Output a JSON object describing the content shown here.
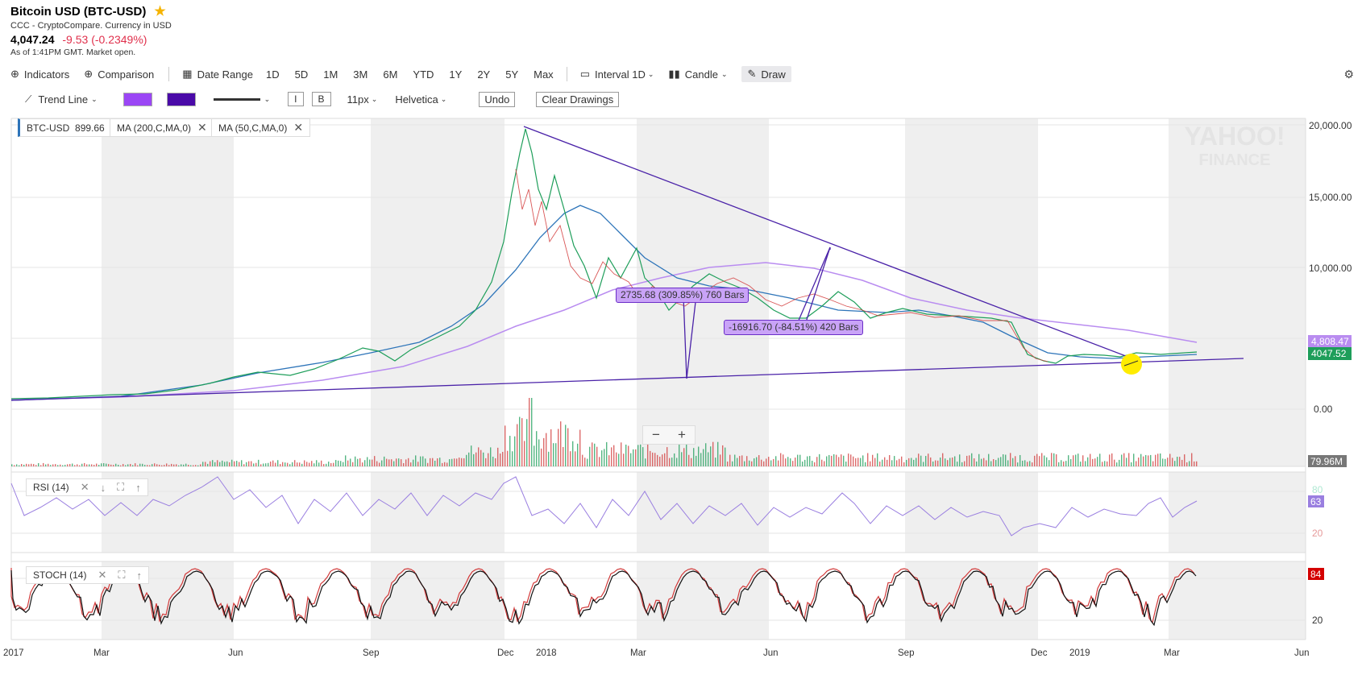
{
  "header": {
    "title": "Bitcoin USD (BTC-USD)",
    "source": "CCC - CryptoCompare. Currency in USD",
    "price": "4,047.24",
    "change": "-9.53 (-0.2349%)",
    "as_of": "As of 1:41PM GMT. Market open."
  },
  "toolbar": {
    "indicators": "Indicators",
    "comparison": "Comparison",
    "date_range": "Date Range",
    "ranges": [
      "1D",
      "5D",
      "1M",
      "3M",
      "6M",
      "YTD",
      "1Y",
      "2Y",
      "5Y",
      "Max"
    ],
    "interval": "Interval",
    "interval_value": "1D",
    "chart_type": "Candle",
    "draw": "Draw"
  },
  "drawbar": {
    "tool": "Trend Line",
    "fill_color": "#9b46f5",
    "line_color": "#4a0aa8",
    "italic": "I",
    "bold": "B",
    "font_size": "11px",
    "font_family": "Helvetica",
    "undo": "Undo",
    "clear": "Clear Drawings"
  },
  "legend": {
    "btc": "BTC-USD",
    "btc_value": "899.66",
    "ma200": "MA (200,C,MA,0)",
    "ma50": "MA (50,C,MA,0)"
  },
  "annotations": {
    "measure1": "2735.68 (309.85%) 760 Bars",
    "measure2": "-16916.70 (-84.51%) 420 Bars"
  },
  "watermark": {
    "line1": "YAHOO!",
    "line2": "FINANCE"
  },
  "zoom": {
    "minus": "−",
    "plus": "+"
  },
  "price_axis": {
    "ticks": [
      "20,000.00",
      "15,000.00",
      "10,000.00",
      "0.00"
    ],
    "ma200_label": "4,808.47",
    "last_label": "4047.52",
    "volume_label": "79.96M"
  },
  "rsi": {
    "label": "RSI (14)",
    "ticks": [
      "80",
      "20"
    ],
    "value": "63"
  },
  "stoch": {
    "label": "STOCH (14)",
    "tick": "20",
    "value": "84"
  },
  "x_axis": [
    "2017",
    "Mar",
    "Jun",
    "Sep",
    "Dec",
    "2018",
    "Mar",
    "Jun",
    "Sep",
    "Dec",
    "2019",
    "Mar",
    "Jun"
  ],
  "colors": {
    "price_up": "#1e9e5a",
    "price_down": "#d23a3a",
    "ma50": "#2d74b9",
    "ma200": "#b98cf0",
    "trendline": "#4a22a8",
    "rsi": "#9a7fe0",
    "highlight": "#ffec00"
  },
  "chart_data": {
    "type": "line",
    "title": "Bitcoin USD (BTC-USD)",
    "x": [
      "2017-01",
      "2017-03",
      "2017-06",
      "2017-09",
      "2017-12",
      "2018-01",
      "2018-03",
      "2018-06",
      "2018-09",
      "2018-12",
      "2019-01",
      "2019-03"
    ],
    "series": [
      {
        "name": "BTC-USD",
        "values": [
          1000,
          1200,
          2700,
          4300,
          19500,
          13500,
          8500,
          6500,
          6600,
          3500,
          3600,
          4047
        ]
      },
      {
        "name": "MA (50,C,MA,0)",
        "values": [
          950,
          1100,
          2300,
          4000,
          12000,
          14000,
          9000,
          7000,
          6500,
          4500,
          3700,
          3900
        ]
      },
      {
        "name": "MA (200,C,MA,0)",
        "values": [
          800,
          900,
          1400,
          2500,
          5000,
          7000,
          9500,
          8000,
          7000,
          6000,
          5200,
          4808
        ]
      }
    ],
    "ylim": [
      0,
      20000
    ]
  }
}
